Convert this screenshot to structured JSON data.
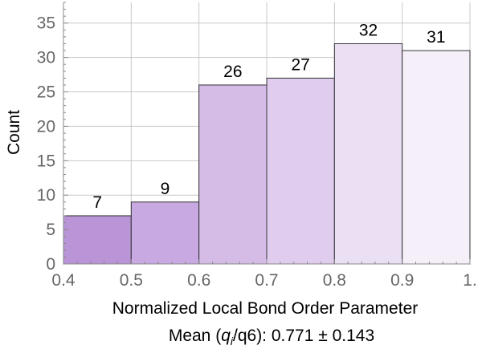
{
  "chart_data": {
    "type": "bar",
    "bins": [
      {
        "from": 0.4,
        "to": 0.5,
        "count": 7
      },
      {
        "from": 0.5,
        "to": 0.6,
        "count": 9
      },
      {
        "from": 0.6,
        "to": 0.7,
        "count": 26
      },
      {
        "from": 0.7,
        "to": 0.8,
        "count": 27
      },
      {
        "from": 0.8,
        "to": 0.9,
        "count": 32
      },
      {
        "from": 0.9,
        "to": 1.0,
        "count": 31
      }
    ],
    "data_labels": [
      "7",
      "9",
      "26",
      "27",
      "32",
      "31"
    ],
    "bar_colors": [
      "#b994d6",
      "#c8a9e1",
      "#d4bce7",
      "#e0cdee",
      "#ebdff4",
      "#f5eff9"
    ],
    "xlabel": "Normalized Local Bond Order Parameter",
    "subtitle_prefix": "Mean (",
    "subtitle_q": "q",
    "subtitle_sub": "i",
    "subtitle_suffix": "/q6): 0.771 ± 0.143",
    "ylabel": "Count",
    "xlim": [
      0.4,
      1.0
    ],
    "ylim": [
      0,
      38
    ],
    "x_ticks": [
      0.4,
      0.5,
      0.6,
      0.7,
      0.8,
      0.9,
      1.0
    ],
    "x_tick_labels": [
      "0.4",
      "0.5",
      "0.6",
      "0.7",
      "0.8",
      "0.9",
      "1."
    ],
    "y_ticks": [
      0,
      5,
      10,
      15,
      20,
      25,
      30,
      35
    ],
    "y_tick_labels": [
      "0",
      "5",
      "10",
      "15",
      "20",
      "25",
      "30",
      "35"
    ],
    "grid": true
  }
}
